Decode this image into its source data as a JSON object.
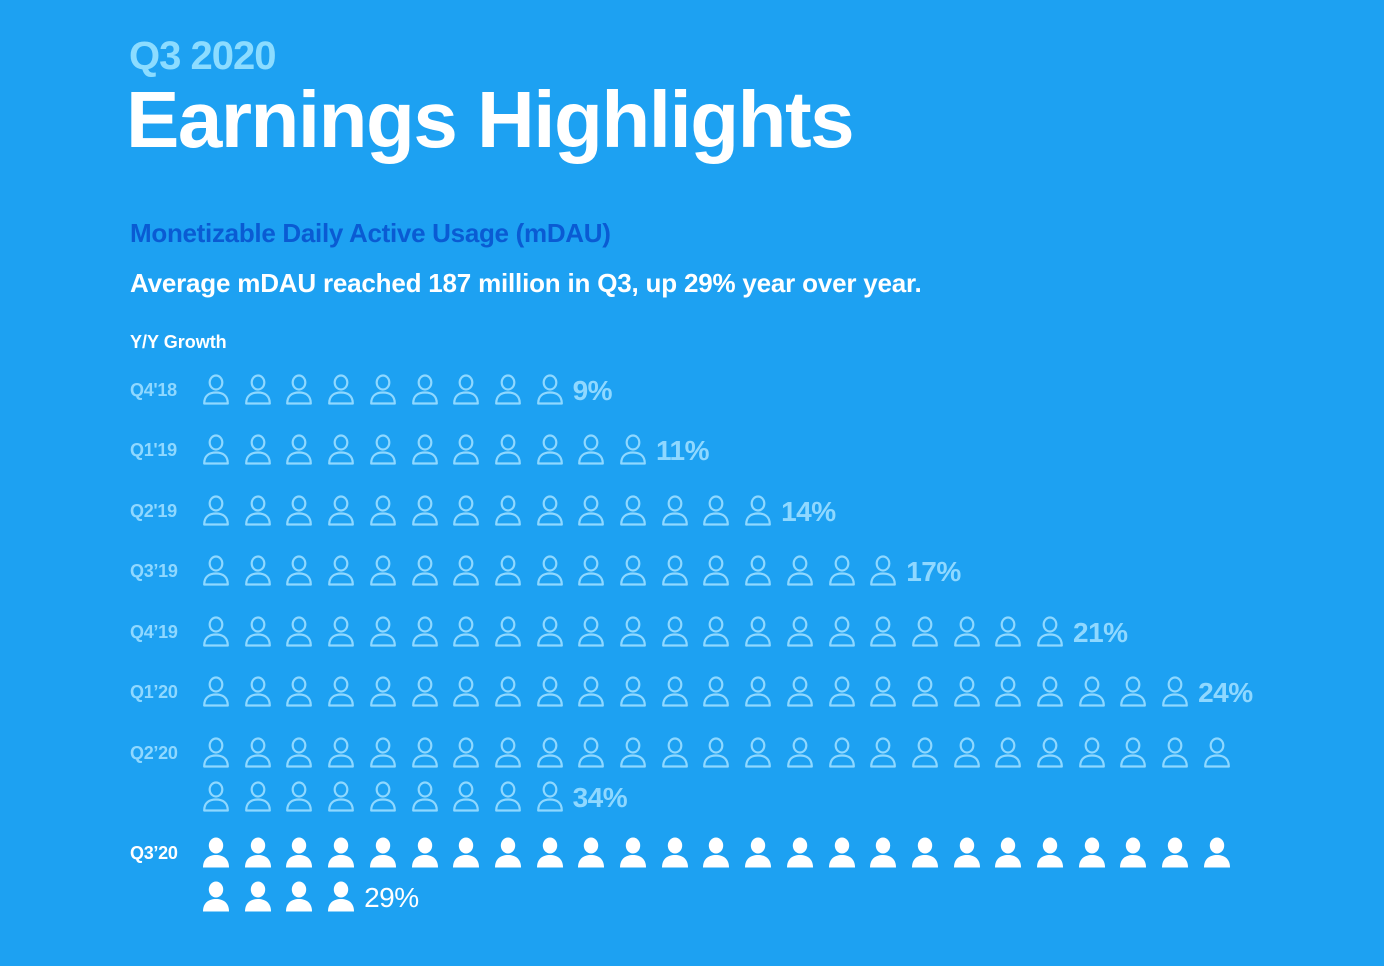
{
  "header": {
    "quarter": "Q3 2020",
    "title": "Earnings Highlights"
  },
  "section": {
    "title": "Monetizable Daily Active Usage (mDAU)",
    "headline": "Average mDAU reached 187 million in Q3, up 29% year over year.",
    "growth_label": "Y/Y Growth"
  },
  "colors": {
    "background": "#1DA1F2",
    "quarter_title": "#8CDCFF",
    "section_title": "#0A5BD3",
    "past_rows": "#8FD8FF",
    "current_row": "#FFFFFF"
  },
  "icons": {
    "past": "person-outline-icon",
    "current": "person-filled-icon"
  },
  "rows": [
    {
      "label": "Q4'18",
      "value": 9,
      "pct": "9%",
      "current": false
    },
    {
      "label": "Q1'19",
      "value": 11,
      "pct": "11%",
      "current": false
    },
    {
      "label": "Q2'19",
      "value": 14,
      "pct": "14%",
      "current": false
    },
    {
      "label": "Q3’19",
      "value": 17,
      "pct": "17%",
      "current": false
    },
    {
      "label": "Q4’19",
      "value": 21,
      "pct": "21%",
      "current": false
    },
    {
      "label": "Q1’20",
      "value": 24,
      "pct": "24%",
      "current": false
    },
    {
      "label": "Q2’20",
      "value": 34,
      "pct": "34%",
      "current": false
    },
    {
      "label": "Q3’20",
      "value": 29,
      "pct": "29%",
      "current": true
    }
  ],
  "chart_data": {
    "type": "bar",
    "subtype": "pictogram (1 icon = 1 percentage point)",
    "title": "Monetizable Daily Active Usage (mDAU)",
    "subtitle": "Average mDAU reached 187 million in Q3, up 29% year over year.",
    "xlabel": "",
    "ylabel": "Y/Y Growth",
    "orientation": "horizontal",
    "categories": [
      "Q4'18",
      "Q1'19",
      "Q2'19",
      "Q3’19",
      "Q4’19",
      "Q1’20",
      "Q2’20",
      "Q3’20"
    ],
    "values": [
      9,
      11,
      14,
      17,
      21,
      24,
      34,
      29
    ],
    "unit": "%",
    "highlight": "Q3’20",
    "grid": false,
    "legend": null
  }
}
